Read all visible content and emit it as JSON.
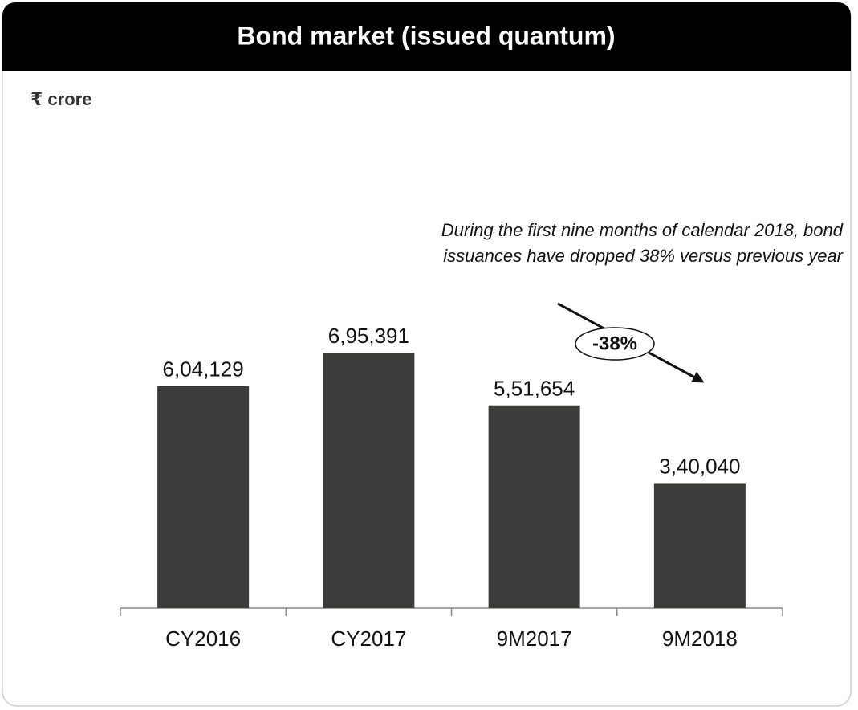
{
  "chart_data": {
    "type": "bar",
    "title": "Bond market (issued quantum)",
    "unit_label": "₹ crore",
    "categories": [
      "CY2016",
      "CY2017",
      "9M2017",
      "9M2018"
    ],
    "values": [
      604129,
      695391,
      551654,
      340040
    ],
    "value_labels": [
      "6,04,129",
      "6,95,391",
      "5,51,654",
      "3,40,040"
    ],
    "color": "#3c3c3b",
    "annotation_lines": [
      "During the first nine months of calendar 2018, bond",
      "issuances have dropped 38% versus previous year"
    ],
    "change_label": "-38%"
  }
}
